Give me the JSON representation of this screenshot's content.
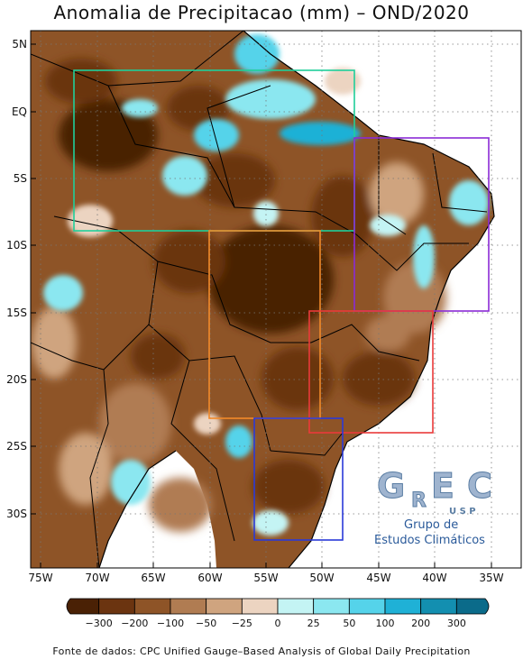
{
  "title": "Anomalia de Precipitacao (mm) – OND/2020",
  "source": "Fonte de dados: CPC Unified Gauge–Based Analysis of Global Daily Precipitation",
  "lat_ticks": [
    "5N",
    "EQ",
    "5S",
    "10S",
    "15S",
    "20S",
    "25S",
    "30S"
  ],
  "lon_ticks": [
    "75W",
    "70W",
    "65W",
    "60W",
    "55W",
    "50W",
    "45W",
    "40W",
    "35W"
  ],
  "colorbar": {
    "labels": [
      "−300",
      "−200",
      "−100",
      "−50",
      "−25",
      "0",
      "25",
      "50",
      "100",
      "200",
      "300"
    ],
    "colors": [
      "#4a2105",
      "#6b3410",
      "#8e5427",
      "#b07c52",
      "#cfa47f",
      "#ecd4c1",
      "#c4f4f4",
      "#8be7f0",
      "#55d3ea",
      "#1fb1d6",
      "#138fb0",
      "#0b6b8a"
    ]
  },
  "logo": {
    "letters": [
      "G",
      "R",
      "E",
      "C"
    ],
    "usp": "U S P",
    "line1": "Grupo de",
    "line2": "Estudos Climáticos"
  },
  "regions": [
    {
      "name": "north",
      "color": "#1fcf9a"
    },
    {
      "name": "northeast",
      "color": "#8a2bd6"
    },
    {
      "name": "center-west",
      "color": "#f28a2a"
    },
    {
      "name": "southeast",
      "color": "#ea3a3a"
    },
    {
      "name": "south",
      "color": "#2a3ad8"
    }
  ]
}
